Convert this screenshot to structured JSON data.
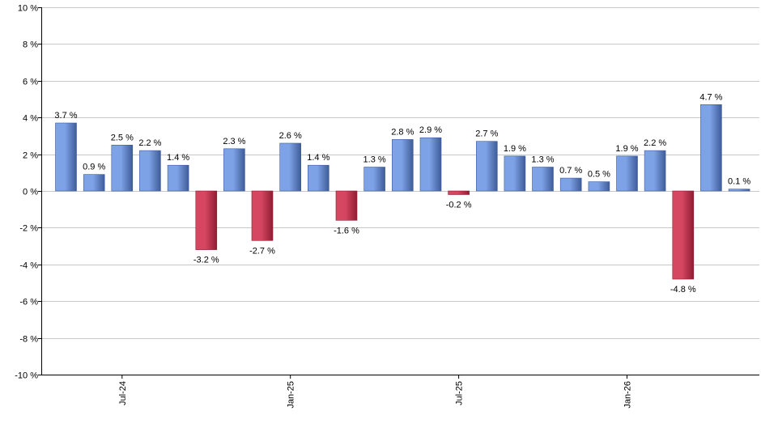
{
  "chart_data": {
    "type": "bar",
    "title": "",
    "xlabel": "",
    "ylabel": "",
    "ylim": [
      -10,
      10
    ],
    "yticks": [
      10,
      8,
      6,
      4,
      2,
      0,
      -2,
      -4,
      -6,
      -8,
      -10
    ],
    "ytick_labels": [
      "10 %",
      "8 %",
      "6 %",
      "4 %",
      "2 %",
      "0 %",
      "-2 %",
      "-4 %",
      "-6 %",
      "-8 %",
      "-10 %"
    ],
    "grid": true,
    "legend": "none",
    "values": [
      3.7,
      0.9,
      2.5,
      2.2,
      1.4,
      -3.2,
      2.3,
      -2.7,
      2.6,
      1.4,
      -1.6,
      1.3,
      2.8,
      2.9,
      -0.2,
      2.7,
      1.9,
      1.3,
      0.7,
      0.5,
      1.9,
      2.2,
      -4.8,
      4.7,
      0.1
    ],
    "value_labels": [
      "3.7 %",
      "0.9 %",
      "2.5 %",
      "2.2 %",
      "1.4 %",
      "-3.2 %",
      "2.3 %",
      "-2.7 %",
      "2.6 %",
      "1.4 %",
      "-1.6 %",
      "1.3 %",
      "2.8 %",
      "2.9 %",
      "-0.2 %",
      "2.7 %",
      "1.9 %",
      "1.3 %",
      "0.7 %",
      "0.5 %",
      "1.9 %",
      "2.2 %",
      "-4.8 %",
      "4.7 %",
      "0.1 %"
    ],
    "x_tick_labels": [
      {
        "label": "Jul-24",
        "bar_index": 2
      },
      {
        "label": "Jan-25",
        "bar_index": 8
      },
      {
        "label": "Jul-25",
        "bar_index": 14
      },
      {
        "label": "Jan-26",
        "bar_index": 20
      }
    ],
    "colors": {
      "positive": "#7ea2e6",
      "positive_dark": "#3e5c99",
      "negative": "#d54660",
      "negative_dark": "#8f1d33",
      "grid": "#c8c8c8",
      "axis": "#000000"
    }
  }
}
